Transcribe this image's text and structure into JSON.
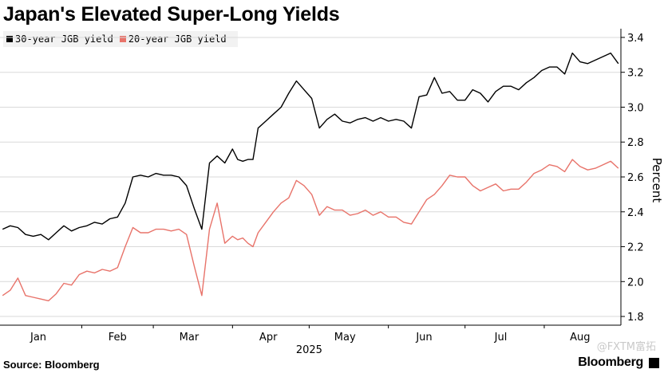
{
  "title": "Japan's Elevated Super-Long Yields",
  "source": "Source: Bloomberg",
  "brand": "Bloomberg",
  "watermark": "@FXTM富拓",
  "colors": {
    "series_30y": "#000000",
    "series_20y": "#e8736a",
    "grid": "#d9d9d9",
    "legend_bg": "#f2f2f2"
  },
  "chart_data": {
    "type": "line",
    "title": "Japan's Elevated Super-Long Yields",
    "xlabel": "2025",
    "ylabel": "Percent",
    "ylim": [
      1.75,
      3.45
    ],
    "yticks": [
      1.8,
      2.0,
      2.2,
      2.4,
      2.6,
      2.8,
      3.0,
      3.2,
      3.4
    ],
    "ytick_labels": [
      "1.8",
      "2.0",
      "2.2",
      "2.4",
      "2.6",
      "2.8",
      "3.0",
      "3.2",
      "3.4"
    ],
    "xlim": [
      "2024-12-31",
      "2025-08-31"
    ],
    "xticks": [
      "2025-01-15",
      "2025-02-15",
      "2025-03-15",
      "2025-04-15",
      "2025-05-15",
      "2025-06-15",
      "2025-07-15",
      "2025-08-15"
    ],
    "xtick_labels": [
      "Jan",
      "Feb",
      "Mar",
      "Apr",
      "May",
      "Jun",
      "Jul",
      "Aug"
    ],
    "grid": "horizontal",
    "legend_position": "top-left",
    "series": [
      {
        "name": "30-year JGB yield",
        "color": "#000000",
        "x": [
          "2025-01-01",
          "2025-01-04",
          "2025-01-07",
          "2025-01-10",
          "2025-01-13",
          "2025-01-16",
          "2025-01-19",
          "2025-01-22",
          "2025-01-25",
          "2025-01-28",
          "2025-01-31",
          "2025-02-03",
          "2025-02-06",
          "2025-02-09",
          "2025-02-12",
          "2025-02-15",
          "2025-02-18",
          "2025-02-21",
          "2025-02-24",
          "2025-02-27",
          "2025-03-02",
          "2025-03-05",
          "2025-03-08",
          "2025-03-11",
          "2025-03-14",
          "2025-03-17",
          "2025-03-20",
          "2025-03-23",
          "2025-03-26",
          "2025-03-29",
          "2025-04-01",
          "2025-04-03",
          "2025-04-05",
          "2025-04-07",
          "2025-04-09",
          "2025-04-11",
          "2025-04-14",
          "2025-04-17",
          "2025-04-20",
          "2025-04-23",
          "2025-04-26",
          "2025-04-29",
          "2025-05-02",
          "2025-05-05",
          "2025-05-08",
          "2025-05-11",
          "2025-05-14",
          "2025-05-17",
          "2025-05-20",
          "2025-05-23",
          "2025-05-26",
          "2025-05-29",
          "2025-06-01",
          "2025-06-04",
          "2025-06-07",
          "2025-06-10",
          "2025-06-13",
          "2025-06-16",
          "2025-06-19",
          "2025-06-22",
          "2025-06-25",
          "2025-06-28",
          "2025-07-01",
          "2025-07-04",
          "2025-07-07",
          "2025-07-10",
          "2025-07-13",
          "2025-07-16",
          "2025-07-19",
          "2025-07-22",
          "2025-07-25",
          "2025-07-28",
          "2025-07-31",
          "2025-08-03",
          "2025-08-06",
          "2025-08-09",
          "2025-08-12",
          "2025-08-15",
          "2025-08-18",
          "2025-08-21",
          "2025-08-24",
          "2025-08-27",
          "2025-08-30"
        ],
        "values": [
          2.3,
          2.32,
          2.31,
          2.27,
          2.26,
          2.27,
          2.24,
          2.28,
          2.32,
          2.29,
          2.31,
          2.32,
          2.34,
          2.33,
          2.36,
          2.37,
          2.45,
          2.6,
          2.61,
          2.6,
          2.62,
          2.61,
          2.61,
          2.6,
          2.55,
          2.42,
          2.3,
          2.68,
          2.72,
          2.68,
          2.76,
          2.7,
          2.69,
          2.7,
          2.7,
          2.88,
          2.92,
          2.96,
          3.0,
          3.08,
          3.15,
          3.1,
          3.05,
          2.88,
          2.93,
          2.96,
          2.92,
          2.91,
          2.93,
          2.94,
          2.92,
          2.94,
          2.92,
          2.93,
          2.92,
          2.88,
          3.06,
          3.07,
          3.17,
          3.08,
          3.09,
          3.04,
          3.04,
          3.1,
          3.08,
          3.03,
          3.09,
          3.12,
          3.12,
          3.1,
          3.14,
          3.17,
          3.21,
          3.23,
          3.23,
          3.19,
          3.31,
          3.26,
          3.25,
          3.27,
          3.29,
          3.31,
          3.25
        ]
      },
      {
        "name": "20-year JGB yield",
        "color": "#e8736a",
        "x": [
          "2025-01-01",
          "2025-01-04",
          "2025-01-07",
          "2025-01-10",
          "2025-01-13",
          "2025-01-16",
          "2025-01-19",
          "2025-01-22",
          "2025-01-25",
          "2025-01-28",
          "2025-01-31",
          "2025-02-03",
          "2025-02-06",
          "2025-02-09",
          "2025-02-12",
          "2025-02-15",
          "2025-02-18",
          "2025-02-21",
          "2025-02-24",
          "2025-02-27",
          "2025-03-02",
          "2025-03-05",
          "2025-03-08",
          "2025-03-11",
          "2025-03-14",
          "2025-03-17",
          "2025-03-20",
          "2025-03-23",
          "2025-03-26",
          "2025-03-29",
          "2025-04-01",
          "2025-04-03",
          "2025-04-05",
          "2025-04-07",
          "2025-04-09",
          "2025-04-11",
          "2025-04-14",
          "2025-04-17",
          "2025-04-20",
          "2025-04-23",
          "2025-04-26",
          "2025-04-29",
          "2025-05-02",
          "2025-05-05",
          "2025-05-08",
          "2025-05-11",
          "2025-05-14",
          "2025-05-17",
          "2025-05-20",
          "2025-05-23",
          "2025-05-26",
          "2025-05-29",
          "2025-06-01",
          "2025-06-04",
          "2025-06-07",
          "2025-06-10",
          "2025-06-13",
          "2025-06-16",
          "2025-06-19",
          "2025-06-22",
          "2025-06-25",
          "2025-06-28",
          "2025-07-01",
          "2025-07-04",
          "2025-07-07",
          "2025-07-10",
          "2025-07-13",
          "2025-07-16",
          "2025-07-19",
          "2025-07-22",
          "2025-07-25",
          "2025-07-28",
          "2025-07-31",
          "2025-08-03",
          "2025-08-06",
          "2025-08-09",
          "2025-08-12",
          "2025-08-15",
          "2025-08-18",
          "2025-08-21",
          "2025-08-24",
          "2025-08-27",
          "2025-08-30"
        ],
        "values": [
          1.92,
          1.95,
          2.02,
          1.92,
          1.91,
          1.9,
          1.89,
          1.93,
          1.99,
          1.98,
          2.04,
          2.06,
          2.05,
          2.07,
          2.06,
          2.08,
          2.2,
          2.31,
          2.28,
          2.28,
          2.3,
          2.3,
          2.29,
          2.3,
          2.27,
          2.09,
          1.92,
          2.3,
          2.45,
          2.22,
          2.26,
          2.24,
          2.25,
          2.22,
          2.2,
          2.28,
          2.34,
          2.4,
          2.45,
          2.48,
          2.58,
          2.55,
          2.5,
          2.38,
          2.43,
          2.41,
          2.41,
          2.38,
          2.39,
          2.41,
          2.38,
          2.4,
          2.37,
          2.37,
          2.34,
          2.33,
          2.4,
          2.47,
          2.5,
          2.55,
          2.61,
          2.6,
          2.6,
          2.55,
          2.52,
          2.54,
          2.56,
          2.52,
          2.53,
          2.53,
          2.57,
          2.62,
          2.64,
          2.67,
          2.66,
          2.63,
          2.7,
          2.66,
          2.64,
          2.65,
          2.67,
          2.69,
          2.65
        ]
      }
    ]
  }
}
